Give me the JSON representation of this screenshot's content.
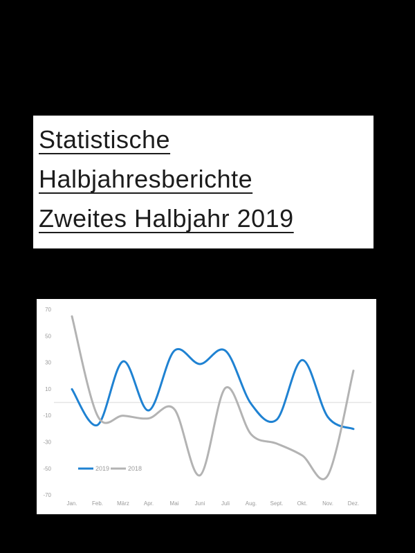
{
  "page": {
    "background_color": "#000000",
    "card_background_color": "#ffffff"
  },
  "title_card": {
    "lines": [
      "Statistische",
      "Halbjahresberichte",
      "Zweites Halbjahr 2019"
    ]
  },
  "chart_data": {
    "type": "line",
    "title": "",
    "xlabel": "",
    "ylabel": "",
    "categories": [
      "Jan.",
      "Feb.",
      "März",
      "Apr.",
      "Mai",
      "Juni",
      "Juli",
      "Aug.",
      "Sept.",
      "Okt.",
      "Nov.",
      "Dez."
    ],
    "series": [
      {
        "name": "2019",
        "color": "#1f82d2",
        "values": [
          10,
          -17,
          31,
          -6,
          39,
          29,
          39,
          -1,
          -13,
          32,
          -11,
          -20
        ]
      },
      {
        "name": "2018",
        "color": "#b3b3b3",
        "values": [
          65,
          -10,
          -10,
          -12,
          -5,
          -55,
          11,
          -24,
          -31,
          -40,
          -55,
          24
        ]
      }
    ],
    "y_ticks": [
      70,
      50,
      30,
      10,
      -10,
      -30,
      -50,
      -70
    ],
    "ylim": [
      -70,
      70
    ],
    "grid": "zero-line-only",
    "gridline_color": "#e4e4e4",
    "axis_label_color": "#9a9a9a",
    "legend_text_color": "#9a9a9a",
    "legend_position": "inside-bottom-left",
    "line_smoothing": "smoothed"
  }
}
